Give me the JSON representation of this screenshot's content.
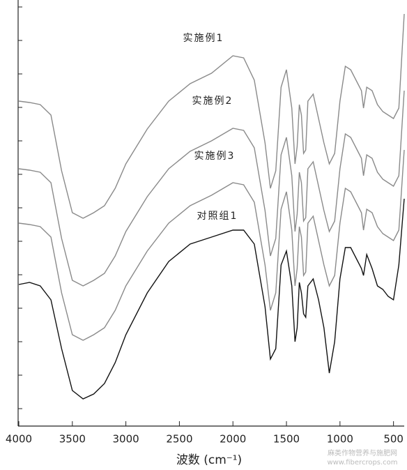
{
  "chart_data": {
    "type": "line",
    "x_label": "波数 (cm⁻¹)",
    "xlim": [
      4000,
      400
    ],
    "xticks": [
      4000,
      3500,
      3000,
      2500,
      2000,
      1500,
      1000,
      500
    ],
    "ylim": [
      0,
      610
    ],
    "yticks": [
      24,
      72,
      120,
      168,
      216,
      264,
      312,
      360,
      408,
      456,
      504,
      552,
      600
    ],
    "x": [
      4000,
      3900,
      3800,
      3700,
      3600,
      3500,
      3400,
      3300,
      3200,
      3100,
      3000,
      2800,
      2600,
      2400,
      2200,
      2000,
      1900,
      1800,
      1700,
      1650,
      1600,
      1550,
      1500,
      1450,
      1420,
      1400,
      1380,
      1360,
      1340,
      1320,
      1300,
      1250,
      1200,
      1150,
      1100,
      1050,
      1000,
      950,
      900,
      850,
      800,
      780,
      750,
      700,
      650,
      600,
      550,
      500,
      450,
      400
    ],
    "series": [
      {
        "name": "实施例1",
        "color": "#8a8a8a",
        "values": [
          465,
          463,
          460,
          445,
          365,
          305,
          297,
          305,
          315,
          340,
          375,
          425,
          465,
          490,
          505,
          530,
          527,
          495,
          405,
          340,
          365,
          485,
          510,
          455,
          375,
          400,
          460,
          445,
          390,
          395,
          465,
          475,
          440,
          405,
          375,
          390,
          465,
          515,
          510,
          495,
          480,
          455,
          485,
          480,
          460,
          450,
          445,
          440,
          455,
          590
        ]
      },
      {
        "name": "实施例2",
        "color": "#8a8a8a",
        "values": [
          368,
          366,
          363,
          348,
          268,
          208,
          200,
          208,
          218,
          243,
          278,
          328,
          368,
          393,
          408,
          426,
          423,
          398,
          308,
          243,
          268,
          388,
          413,
          358,
          278,
          303,
          363,
          348,
          293,
          298,
          368,
          378,
          343,
          308,
          278,
          293,
          368,
          418,
          413,
          398,
          383,
          358,
          388,
          383,
          363,
          353,
          348,
          343,
          358,
          480
        ]
      },
      {
        "name": "实施例3",
        "color": "#8a8a8a",
        "values": [
          290,
          288,
          285,
          270,
          190,
          130,
          122,
          130,
          140,
          165,
          200,
          250,
          290,
          315,
          330,
          348,
          345,
          320,
          230,
          165,
          190,
          310,
          335,
          280,
          200,
          225,
          285,
          270,
          215,
          220,
          290,
          300,
          265,
          230,
          200,
          215,
          290,
          340,
          335,
          320,
          305,
          280,
          310,
          305,
          285,
          275,
          270,
          265,
          280,
          395
        ]
      },
      {
        "name": "对照组1",
        "color": "#111111",
        "values": [
          202,
          205,
          200,
          180,
          110,
          50,
          38,
          45,
          60,
          90,
          130,
          190,
          235,
          260,
          270,
          280,
          280,
          260,
          170,
          95,
          110,
          230,
          250,
          200,
          120,
          140,
          205,
          190,
          160,
          155,
          200,
          210,
          180,
          140,
          75,
          120,
          210,
          255,
          255,
          240,
          225,
          215,
          245,
          225,
          200,
          195,
          185,
          180,
          230,
          325
        ]
      }
    ],
    "watermark": [
      "麻类作物营养与施肥网",
      "www.fibercrops.com"
    ]
  }
}
